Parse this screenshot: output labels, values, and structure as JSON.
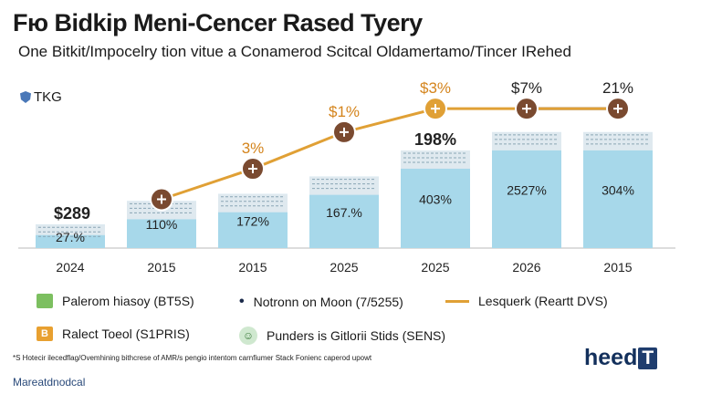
{
  "header": {
    "title": "Fю Bidkip Meni-Cencer Rased Tyery",
    "subtitle": "One Bitkit/Impocelry tion vitue a Conamerod Scitcal Oldamertamo/Tincer IRehed",
    "brand": "TKG"
  },
  "chart_data": {
    "type": "bar",
    "title": "Fю Bidkip Meni-Cencer Rased Tyery",
    "categories": [
      "2024",
      "2015",
      "2015",
      "2025",
      "2025",
      "2026",
      "2015"
    ],
    "bar_series": {
      "name": "Palerom hiasoy (BT5S)",
      "values": [
        27,
        54,
        62,
        82,
        112,
        133,
        133
      ],
      "inner_labels": [
        "27.%",
        "110%",
        "172%",
        "167.%",
        "403%",
        "2527%",
        "304%"
      ],
      "top_labels": [
        "$289",
        "",
        "",
        "",
        "198%",
        "",
        ""
      ]
    },
    "line_series": {
      "name": "Lesquerk (Reartt DVS)",
      "points": [
        [
          1,
          56
        ],
        [
          2,
          91
        ],
        [
          3,
          133
        ],
        [
          4,
          160
        ],
        [
          5,
          160
        ],
        [
          6,
          160
        ]
      ],
      "labels": [
        "",
        "3%",
        "$1%",
        "$3%",
        "$7%",
        "21%"
      ]
    },
    "navy_series": {
      "name": "Notronn on Moon (7/5255)",
      "points": [
        [
          5,
          160
        ],
        [
          6,
          160
        ]
      ]
    },
    "ylim": [
      0,
      180
    ]
  },
  "legend": {
    "items": [
      {
        "label": "Palerom hiasoy (BT5S)",
        "color": "#7cbf60",
        "glyph": "▭"
      },
      {
        "label": "Notronn on Moon (7/5255)",
        "color": "#1b2a4a",
        "glyph": "•"
      },
      {
        "label": "Lesquerk (Reartt DVS)",
        "color": "#e8a030",
        "glyph": ""
      },
      {
        "label": "Ralect Toeol (S1PRIS)",
        "color": "#e8a030",
        "glyph": "B"
      },
      {
        "label": "Punders is Gitlorii Stids (SENS)",
        "color": "#cfe8cf",
        "glyph": "☺"
      }
    ]
  },
  "footer": {
    "footnote": "*S Hotecir ilecedflag/Ovemhining bithcrese of AMR/s pengio intentom carnfiumer Stack Fonienc caperod upowt",
    "source": "Mareatdnodcal",
    "logo_text": "heed",
    "logo_box": "T"
  },
  "colors": {
    "bar": "#a7d8ea",
    "bar_top": "#dfe9ef",
    "line": "#e0a035",
    "marker": "#7a4a30",
    "navy": "#1b2a4a"
  }
}
